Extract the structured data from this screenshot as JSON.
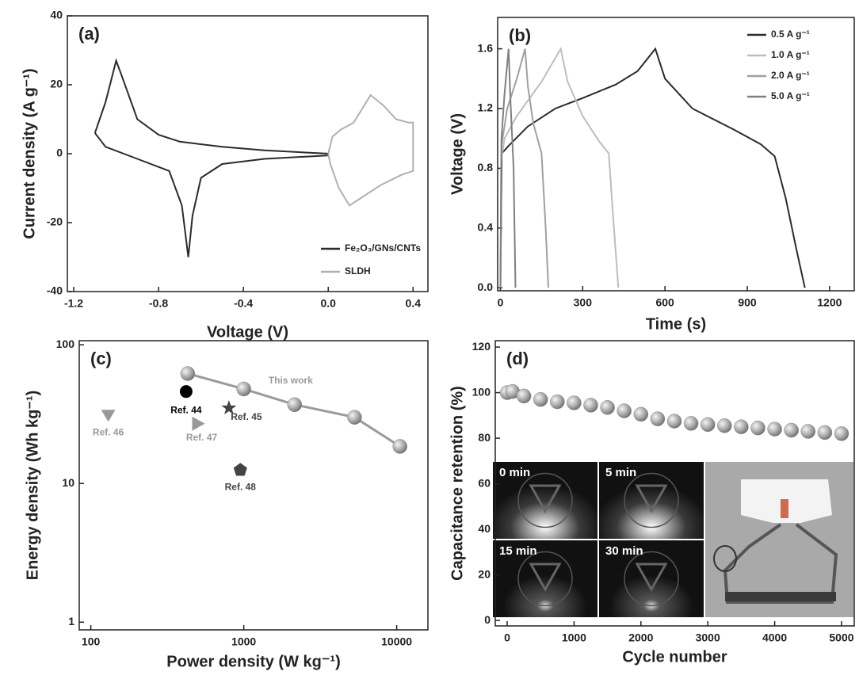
{
  "chart_data": [
    {
      "type": "line",
      "label": "(a)",
      "xlabel": "Voltage (V)",
      "ylabel": "Current density (A g⁻¹)",
      "xlim": [
        -1.23,
        0.47
      ],
      "ylim": [
        -40,
        40
      ],
      "xticks": [
        -1.2,
        -0.8,
        -0.4,
        {
          "value": 0,
          "label": "0.0"
        },
        0.4
      ],
      "yticks": [
        -40,
        -20,
        0,
        20,
        40
      ],
      "legend": "lower right",
      "series": [
        {
          "name": "Fe₂O₃/GNs/CNTs",
          "color": "#2b2b2b",
          "x": [
            -1.1,
            -1.05,
            -1.0,
            -0.97,
            -0.9,
            -0.8,
            -0.7,
            -0.5,
            -0.3,
            0,
            0,
            -0.3,
            -0.5,
            -0.6,
            -0.64,
            -0.66,
            -0.69,
            -0.75,
            -0.9,
            -1.05,
            -1.1
          ],
          "values": [
            6,
            15,
            27,
            22,
            10,
            5.5,
            3.5,
            2,
            1,
            0,
            -0.5,
            -1.5,
            -3,
            -7,
            -18,
            -30,
            -15,
            -5,
            -1.5,
            2,
            6
          ]
        },
        {
          "name": "SLDH",
          "color": "#b0b0b0",
          "x": [
            0,
            0.02,
            0.06,
            0.12,
            0.2,
            0.26,
            0.32,
            0.38,
            0.4,
            0.4,
            0.35,
            0.25,
            0.15,
            0.1,
            0.05,
            0.01,
            0
          ],
          "values": [
            0,
            5,
            7,
            9,
            17,
            14,
            10,
            9,
            9,
            -5,
            -6,
            -9,
            -13,
            -15,
            -10,
            -3,
            0
          ]
        }
      ]
    },
    {
      "type": "line",
      "label": "(b)",
      "xlabel": "Time (s)",
      "ylabel": "Voltage (V)",
      "xlim": [
        -10,
        1290
      ],
      "ylim": [
        -0.02,
        1.81
      ],
      "xticks": [
        0,
        300,
        600,
        900,
        1200
      ],
      "yticks": [
        {
          "value": 0,
          "label": "0.0"
        },
        0.4,
        0.8,
        1.2,
        1.6
      ],
      "legend": "upper right",
      "series": [
        {
          "name": "0.5 A g⁻¹",
          "color": "#2b2b2b",
          "x": [
            0,
            5,
            30,
            100,
            200,
            300,
            420,
            500,
            565,
            600,
            700,
            850,
            950,
            1000,
            1040,
            1080,
            1110
          ],
          "values": [
            0,
            0.9,
            0.95,
            1.08,
            1.2,
            1.27,
            1.36,
            1.45,
            1.6,
            1.4,
            1.2,
            1.06,
            0.96,
            0.88,
            0.6,
            0.25,
            0
          ]
        },
        {
          "name": "1.0 A g⁻¹",
          "color": "#bdbdbd",
          "x": [
            0,
            3,
            15,
            60,
            150,
            220,
            245,
            300,
            360,
            395,
            410,
            430
          ],
          "values": [
            0,
            0.85,
            1.0,
            1.15,
            1.38,
            1.6,
            1.38,
            1.15,
            0.98,
            0.9,
            0.5,
            0
          ]
        },
        {
          "name": "2.0 A g⁻¹",
          "color": "#a0a0a0",
          "x": [
            0,
            4,
            25,
            60,
            90,
            100,
            120,
            150,
            165,
            175
          ],
          "values": [
            0,
            0.95,
            1.2,
            1.4,
            1.6,
            1.35,
            1.1,
            0.9,
            0.4,
            0
          ]
        },
        {
          "name": "5.0 A g⁻¹",
          "color": "#808080",
          "x": [
            0,
            4,
            15,
            30,
            38,
            48,
            55
          ],
          "values": [
            0,
            1.0,
            1.3,
            1.6,
            1.2,
            0.8,
            0
          ]
        }
      ]
    },
    {
      "type": "scatter",
      "label": "(c)",
      "xlabel": "Power density (W kg⁻¹)",
      "ylabel": "Energy density (Wh kg⁻¹)",
      "xscale": "log",
      "yscale": "log",
      "xlim": [
        84,
        16000
      ],
      "ylim": [
        0.88,
        107
      ],
      "xticks": [
        100,
        1000,
        10000
      ],
      "yticks": [
        1,
        10,
        100
      ],
      "series": [
        {
          "name": "This work",
          "color": "#9a9a9a",
          "marker": "sphere",
          "connected": true,
          "x": [
            430,
            1000,
            2150,
            5300,
            10500
          ],
          "values": [
            62,
            48,
            37,
            30,
            18.5
          ]
        },
        {
          "name": "Ref. 44",
          "color": "#000000",
          "marker": "circle",
          "x": [
            420
          ],
          "values": [
            46
          ]
        },
        {
          "name": "Ref. 45",
          "color": "#444444",
          "marker": "star",
          "x": [
            800
          ],
          "values": [
            35
          ]
        },
        {
          "name": "Ref. 46",
          "color": "#999999",
          "marker": "triangle-down",
          "x": [
            130
          ],
          "values": [
            31
          ]
        },
        {
          "name": "Ref. 47",
          "color": "#999999",
          "marker": "triangle-right",
          "x": [
            500
          ],
          "values": [
            27
          ]
        },
        {
          "name": "Ref. 48",
          "color": "#444444",
          "marker": "pentagon",
          "x": [
            950
          ],
          "values": [
            12.5
          ]
        }
      ]
    },
    {
      "type": "scatter",
      "label": "(d)",
      "xlabel": "Cycle number",
      "ylabel": "Capacitance retention (%)",
      "xlim": [
        -178,
        5190
      ],
      "ylim": [
        -2.4,
        122.8
      ],
      "xticks": [
        0,
        1000,
        2000,
        3000,
        4000,
        5000
      ],
      "yticks": [
        0,
        20,
        40,
        60,
        80,
        100,
        120
      ],
      "insets": [
        "0 min",
        "5 min",
        "15 min",
        "30 min"
      ],
      "series": [
        {
          "color": "#9a9a9a",
          "marker": "sphere",
          "x": [
            0,
            80,
            250,
            500,
            750,
            1000,
            1250,
            1500,
            1750,
            2000,
            2250,
            2500,
            2750,
            3000,
            3250,
            3500,
            3750,
            4000,
            4250,
            4500,
            4750,
            5000
          ],
          "values": [
            100,
            100.5,
            98.5,
            97,
            96,
            95.5,
            94.5,
            93.5,
            92,
            90.5,
            88.5,
            87.5,
            86.5,
            86,
            85.5,
            85,
            84.5,
            84,
            83.5,
            83,
            82.5,
            82
          ]
        }
      ]
    }
  ]
}
